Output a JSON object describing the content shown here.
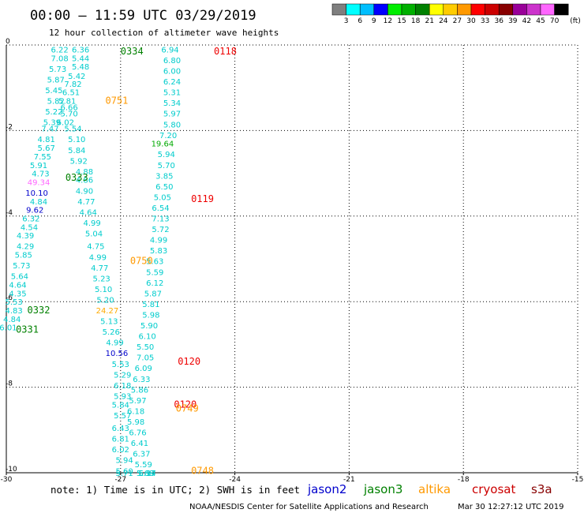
{
  "header": {
    "title": "00:00 – 11:59 UTC 03/29/2019",
    "subtitle": "12 hour collection of altimeter wave heights"
  },
  "color_scale": {
    "unit": "(ft)",
    "labels": [
      "3",
      "6",
      "9",
      "12",
      "15",
      "18",
      "21",
      "24",
      "27",
      "30",
      "33",
      "36",
      "39",
      "42",
      "45",
      "70"
    ],
    "colors": [
      "#7f7f7f",
      "#00ffff",
      "#00bfff",
      "#0000ff",
      "#00ee00",
      "#00b000",
      "#008000",
      "#ffff00",
      "#ffcc00",
      "#ff9900",
      "#ff0000",
      "#cc0000",
      "#880000",
      "#990099",
      "#cc33cc",
      "#ff66ff",
      "#000000"
    ]
  },
  "footer": {
    "note": "note: 1) Time is in UTC; 2) SWH is in feet",
    "credit": "NOAA/NESDIS Center for Satellite Applications and Research",
    "timestamp": "Mar 30 12:27:12 UTC 2019",
    "satellites": [
      {
        "name": "jason2",
        "color": "#0000cc"
      },
      {
        "name": "jason3",
        "color": "#008000"
      },
      {
        "name": "altika",
        "color": "#ff9900"
      },
      {
        "name": "cryosat",
        "color": "#cc0000"
      },
      {
        "name": "s3a",
        "color": "#880000"
      }
    ]
  },
  "chart_data": {
    "type": "scatter",
    "title": "",
    "xlabel": "",
    "ylabel": "",
    "xlim": [
      -30,
      -15
    ],
    "ylim": [
      -10,
      0
    ],
    "grid": true,
    "x_ticks": [
      "-30",
      "-27",
      "-24",
      "-21",
      "-18",
      "-15"
    ],
    "x_tick_values": [
      -30,
      -27,
      -24,
      -21,
      -18,
      -15
    ],
    "y_ticks": [
      "0",
      "-2",
      "-4",
      "-6",
      "-8",
      "-10"
    ],
    "y_tick_values": [
      0,
      -2,
      -4,
      -6,
      -8,
      -10
    ],
    "observations": [
      {
        "x": -28.6,
        "y": -0.1,
        "label": "6.22",
        "color": "#00cccc"
      },
      {
        "x": -28.6,
        "y": -0.3,
        "label": "7.08",
        "color": "#00cccc"
      },
      {
        "x": -28.65,
        "y": -0.55,
        "label": "5.73",
        "color": "#00cccc"
      },
      {
        "x": -28.7,
        "y": -0.8,
        "label": "5.87",
        "color": "#00cccc"
      },
      {
        "x": -28.75,
        "y": -1.05,
        "label": "5.45",
        "color": "#00cccc"
      },
      {
        "x": -28.7,
        "y": -1.3,
        "label": "5.82",
        "color": "#00cccc"
      },
      {
        "x": -28.75,
        "y": -1.55,
        "label": "5.22",
        "color": "#00cccc"
      },
      {
        "x": -28.8,
        "y": -1.8,
        "label": "5.39",
        "color": "#00cccc"
      },
      {
        "x": -28.85,
        "y": -1.95,
        "label": "7.47",
        "color": "#00cccc"
      },
      {
        "x": -28.95,
        "y": -2.2,
        "label": "4.81",
        "color": "#00cccc"
      },
      {
        "x": -28.95,
        "y": -2.4,
        "label": "5.67",
        "color": "#00cccc"
      },
      {
        "x": -29.05,
        "y": -2.6,
        "label": "7.55",
        "color": "#00cccc"
      },
      {
        "x": -29.15,
        "y": -2.8,
        "label": "5.91",
        "color": "#00cccc"
      },
      {
        "x": -29.1,
        "y": -3.0,
        "label": "4.73",
        "color": "#00cccc"
      },
      {
        "x": -29.15,
        "y": -3.2,
        "label": "49.34",
        "color": "#ff66ff"
      },
      {
        "x": -29.2,
        "y": -3.45,
        "label": "10.10",
        "color": "#0000cc"
      },
      {
        "x": -29.15,
        "y": -3.65,
        "label": "4.84",
        "color": "#00cccc"
      },
      {
        "x": -29.25,
        "y": -3.85,
        "label": "9.62",
        "color": "#0000cc"
      },
      {
        "x": -29.35,
        "y": -4.05,
        "label": "6.32",
        "color": "#00cccc"
      },
      {
        "x": -29.4,
        "y": -4.25,
        "label": "4.54",
        "color": "#00cccc"
      },
      {
        "x": -29.5,
        "y": -4.45,
        "label": "4.39",
        "color": "#00cccc"
      },
      {
        "x": -29.5,
        "y": -4.7,
        "label": "4.29",
        "color": "#00cccc"
      },
      {
        "x": -29.55,
        "y": -4.9,
        "label": "5.85",
        "color": "#00cccc"
      },
      {
        "x": -29.6,
        "y": -5.15,
        "label": "5.73",
        "color": "#00cccc"
      },
      {
        "x": -29.65,
        "y": -5.4,
        "label": "5.64",
        "color": "#00cccc"
      },
      {
        "x": -29.7,
        "y": -5.6,
        "label": "4.64",
        "color": "#00cccc"
      },
      {
        "x": -29.7,
        "y": -5.8,
        "label": "4.35",
        "color": "#00cccc"
      },
      {
        "x": -29.8,
        "y": -6.0,
        "label": "5.53",
        "color": "#00cccc"
      },
      {
        "x": -29.8,
        "y": -6.2,
        "label": "4.83",
        "color": "#00cccc"
      },
      {
        "x": -29.85,
        "y": -6.4,
        "label": "4.84",
        "color": "#00cccc"
      },
      {
        "x": -29.95,
        "y": -6.6,
        "label": "6.01",
        "color": "#00cccc"
      },
      {
        "x": -28.05,
        "y": -0.1,
        "label": "6.36",
        "color": "#00cccc"
      },
      {
        "x": -28.05,
        "y": -0.3,
        "label": "5.44",
        "color": "#00cccc"
      },
      {
        "x": -28.05,
        "y": -0.5,
        "label": "5.48",
        "color": "#00cccc"
      },
      {
        "x": -28.15,
        "y": -0.72,
        "label": "5.42",
        "color": "#00cccc"
      },
      {
        "x": -28.25,
        "y": -0.9,
        "label": "7.82",
        "color": "#00cccc"
      },
      {
        "x": -28.3,
        "y": -1.1,
        "label": "6.51",
        "color": "#00cccc"
      },
      {
        "x": -28.4,
        "y": -1.3,
        "label": "5.81",
        "color": "#00cccc"
      },
      {
        "x": -28.35,
        "y": -1.45,
        "label": "6.66",
        "color": "#00cccc"
      },
      {
        "x": -28.35,
        "y": -1.6,
        "label": "5.70",
        "color": "#00cccc"
      },
      {
        "x": -28.45,
        "y": -1.8,
        "label": "6.02",
        "color": "#00cccc"
      },
      {
        "x": -28.25,
        "y": -1.95,
        "label": "5.54",
        "color": "#00cccc"
      },
      {
        "x": -28.15,
        "y": -2.2,
        "label": "5.10",
        "color": "#00cccc"
      },
      {
        "x": -28.15,
        "y": -2.45,
        "label": "5.84",
        "color": "#00cccc"
      },
      {
        "x": -28.1,
        "y": -2.7,
        "label": "5.92",
        "color": "#00cccc"
      },
      {
        "x": -27.95,
        "y": -2.95,
        "label": "4.88",
        "color": "#00cccc"
      },
      {
        "x": -27.95,
        "y": -3.15,
        "label": "4.86",
        "color": "#00cccc"
      },
      {
        "x": -27.95,
        "y": -3.4,
        "label": "4.90",
        "color": "#00cccc"
      },
      {
        "x": -27.9,
        "y": -3.65,
        "label": "4.77",
        "color": "#00cccc"
      },
      {
        "x": -27.85,
        "y": -3.9,
        "label": "4.64",
        "color": "#00cccc"
      },
      {
        "x": -27.75,
        "y": -4.15,
        "label": "4.99",
        "color": "#00cccc"
      },
      {
        "x": -27.7,
        "y": -4.4,
        "label": "5.04",
        "color": "#00cccc"
      },
      {
        "x": -27.65,
        "y": -4.7,
        "label": "4.75",
        "color": "#00cccc"
      },
      {
        "x": -27.6,
        "y": -4.95,
        "label": "4.99",
        "color": "#00cccc"
      },
      {
        "x": -27.55,
        "y": -5.2,
        "label": "4.77",
        "color": "#00cccc"
      },
      {
        "x": -27.5,
        "y": -5.45,
        "label": "5.23",
        "color": "#00cccc"
      },
      {
        "x": -27.45,
        "y": -5.7,
        "label": "5.10",
        "color": "#00cccc"
      },
      {
        "x": -27.4,
        "y": -5.95,
        "label": "5.20",
        "color": "#00cccc"
      },
      {
        "x": -27.35,
        "y": -6.2,
        "label": "24.27",
        "color": "#ffaa00"
      },
      {
        "x": -27.3,
        "y": -6.45,
        "label": "5.13",
        "color": "#00cccc"
      },
      {
        "x": -27.25,
        "y": -6.7,
        "label": "5.26",
        "color": "#00cccc"
      },
      {
        "x": -27.15,
        "y": -6.95,
        "label": "4.99",
        "color": "#00cccc"
      },
      {
        "x": -27.1,
        "y": -7.2,
        "label": "10.56",
        "color": "#0000cc"
      },
      {
        "x": -27.0,
        "y": -7.45,
        "label": "5.53",
        "color": "#00cccc"
      },
      {
        "x": -26.95,
        "y": -7.7,
        "label": "5.29",
        "color": "#00cccc"
      },
      {
        "x": -26.95,
        "y": -7.95,
        "label": "6.18",
        "color": "#00cccc"
      },
      {
        "x": -26.95,
        "y": -8.2,
        "label": "5.93",
        "color": "#00cccc"
      },
      {
        "x": -27.0,
        "y": -8.4,
        "label": "5.84",
        "color": "#00cccc"
      },
      {
        "x": -26.95,
        "y": -8.65,
        "label": "5.57",
        "color": "#00cccc"
      },
      {
        "x": -27.0,
        "y": -8.95,
        "label": "6.43",
        "color": "#00cccc"
      },
      {
        "x": -27.0,
        "y": -9.2,
        "label": "6.81",
        "color": "#00cccc"
      },
      {
        "x": -27.0,
        "y": -9.45,
        "label": "6.02",
        "color": "#00cccc"
      },
      {
        "x": -26.9,
        "y": -9.7,
        "label": "5.94",
        "color": "#00cccc"
      },
      {
        "x": -26.9,
        "y": -9.95,
        "label": "5.60",
        "color": "#00cccc"
      },
      {
        "x": -26.9,
        "y": -10.0,
        "label": "5.71",
        "color": "#00cccc"
      },
      {
        "x": -25.7,
        "y": -0.1,
        "label": "6.94",
        "color": "#00cccc"
      },
      {
        "x": -25.65,
        "y": -0.35,
        "label": "6.80",
        "color": "#00cccc"
      },
      {
        "x": -25.65,
        "y": -0.6,
        "label": "6.00",
        "color": "#00cccc"
      },
      {
        "x": -25.65,
        "y": -0.85,
        "label": "6.24",
        "color": "#00cccc"
      },
      {
        "x": -25.65,
        "y": -1.1,
        "label": "5.31",
        "color": "#00cccc"
      },
      {
        "x": -25.65,
        "y": -1.35,
        "label": "5.34",
        "color": "#00cccc"
      },
      {
        "x": -25.65,
        "y": -1.6,
        "label": "5.97",
        "color": "#00cccc"
      },
      {
        "x": -25.65,
        "y": -1.85,
        "label": "5.80",
        "color": "#00cccc"
      },
      {
        "x": -25.75,
        "y": -2.1,
        "label": "7.20",
        "color": "#00cccc"
      },
      {
        "x": -25.9,
        "y": -2.3,
        "label": "19.64",
        "color": "#00aa00"
      },
      {
        "x": -25.8,
        "y": -2.55,
        "label": "5.94",
        "color": "#00cccc"
      },
      {
        "x": -25.8,
        "y": -2.8,
        "label": "5.70",
        "color": "#00cccc"
      },
      {
        "x": -25.85,
        "y": -3.05,
        "label": "3.85",
        "color": "#00cccc"
      },
      {
        "x": -25.85,
        "y": -3.3,
        "label": "6.50",
        "color": "#00cccc"
      },
      {
        "x": -25.9,
        "y": -3.55,
        "label": "5.05",
        "color": "#00cccc"
      },
      {
        "x": -25.95,
        "y": -3.8,
        "label": "6.54",
        "color": "#00cccc"
      },
      {
        "x": -25.95,
        "y": -4.05,
        "label": "7.13",
        "color": "#00cccc"
      },
      {
        "x": -25.95,
        "y": -4.3,
        "label": "5.72",
        "color": "#00cccc"
      },
      {
        "x": -26.0,
        "y": -4.55,
        "label": "4.99",
        "color": "#00cccc"
      },
      {
        "x": -26.0,
        "y": -4.8,
        "label": "5.83",
        "color": "#00cccc"
      },
      {
        "x": -26.1,
        "y": -5.05,
        "label": "5.63",
        "color": "#00cccc"
      },
      {
        "x": -26.1,
        "y": -5.3,
        "label": "5.59",
        "color": "#00cccc"
      },
      {
        "x": -26.1,
        "y": -5.55,
        "label": "6.12",
        "color": "#00cccc"
      },
      {
        "x": -26.15,
        "y": -5.8,
        "label": "5.87",
        "color": "#00cccc"
      },
      {
        "x": -26.2,
        "y": -6.05,
        "label": "5.81",
        "color": "#00cccc"
      },
      {
        "x": -26.2,
        "y": -6.3,
        "label": "5.98",
        "color": "#00cccc"
      },
      {
        "x": -26.25,
        "y": -6.55,
        "label": "5.90",
        "color": "#00cccc"
      },
      {
        "x": -26.3,
        "y": -6.8,
        "label": "6.10",
        "color": "#00cccc"
      },
      {
        "x": -26.35,
        "y": -7.05,
        "label": "5.50",
        "color": "#00cccc"
      },
      {
        "x": -26.35,
        "y": -7.3,
        "label": "7.05",
        "color": "#00cccc"
      },
      {
        "x": -26.4,
        "y": -7.55,
        "label": "6.09",
        "color": "#00cccc"
      },
      {
        "x": -26.45,
        "y": -7.8,
        "label": "6.33",
        "color": "#00cccc"
      },
      {
        "x": -26.5,
        "y": -8.05,
        "label": "5.86",
        "color": "#00cccc"
      },
      {
        "x": -26.55,
        "y": -8.3,
        "label": "5.97",
        "color": "#00cccc"
      },
      {
        "x": -26.6,
        "y": -8.55,
        "label": "6.18",
        "color": "#00cccc"
      },
      {
        "x": -26.6,
        "y": -8.8,
        "label": "5.98",
        "color": "#00cccc"
      },
      {
        "x": -26.55,
        "y": -9.05,
        "label": "6.76",
        "color": "#00cccc"
      },
      {
        "x": -26.5,
        "y": -9.3,
        "label": "6.41",
        "color": "#00cccc"
      },
      {
        "x": -26.45,
        "y": -9.55,
        "label": "6.37",
        "color": "#00cccc"
      },
      {
        "x": -26.4,
        "y": -9.8,
        "label": "5.59",
        "color": "#00cccc"
      },
      {
        "x": -26.35,
        "y": -10.0,
        "label": "5.68",
        "color": "#00cccc"
      },
      {
        "x": -26.3,
        "y": -10.0,
        "label": "5.97",
        "color": "#00cccc"
      },
      {
        "x": -26.3,
        "y": -10.0,
        "label": "6.14",
        "color": "#00cccc"
      }
    ],
    "pass_times": [
      {
        "x": -27.0,
        "y": -0.15,
        "label": "0334",
        "color": "#008000"
      },
      {
        "x": -24.55,
        "y": -0.15,
        "label": "0118",
        "color": "#ee0000"
      },
      {
        "x": -27.4,
        "y": -1.3,
        "label": "0751",
        "color": "#ff9900"
      },
      {
        "x": -28.45,
        "y": -3.1,
        "label": "0333",
        "color": "#008000"
      },
      {
        "x": -25.15,
        "y": -3.6,
        "label": "0119",
        "color": "#ee0000"
      },
      {
        "x": -26.75,
        "y": -5.05,
        "label": "0750",
        "color": "#ff9900"
      },
      {
        "x": -29.45,
        "y": -6.2,
        "label": "0332",
        "color": "#008000"
      },
      {
        "x": -29.75,
        "y": -6.65,
        "label": "0331",
        "color": "#008000"
      },
      {
        "x": -25.5,
        "y": -7.4,
        "label": "0120",
        "color": "#ee0000"
      },
      {
        "x": -25.6,
        "y": -8.4,
        "label": "0120",
        "color": "#ee0000"
      },
      {
        "x": -25.55,
        "y": -8.5,
        "label": "0749",
        "color": "#ff9900"
      },
      {
        "x": -25.15,
        "y": -9.95,
        "label": "0748",
        "color": "#ff9900"
      }
    ]
  }
}
